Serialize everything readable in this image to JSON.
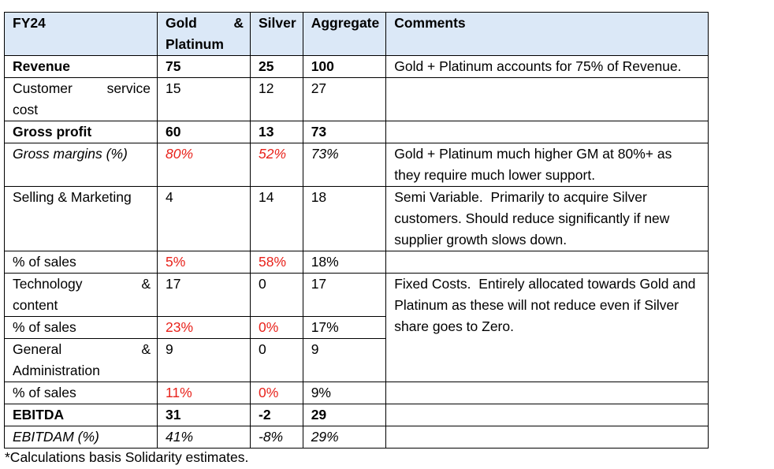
{
  "table": {
    "headers": {
      "label": "FY24",
      "gold_line1_left": "Gold",
      "gold_line1_right": "&",
      "gold_line2": "Platinum",
      "silver": "Silver",
      "aggregate": "Aggregate",
      "comments": "Comments"
    },
    "rows": {
      "revenue": {
        "label": "Revenue",
        "gold": "75",
        "silver": "25",
        "aggregate": "100",
        "comment": "Gold + Platinum accounts for 75% of Revenue."
      },
      "customer_service_cost": {
        "label_left": "Customer",
        "label_right": "service",
        "label_line2": "cost",
        "gold": "15",
        "silver": "12",
        "aggregate": "27",
        "comment": ""
      },
      "gross_profit": {
        "label": "Gross profit",
        "gold": "60",
        "silver": "13",
        "aggregate": "73",
        "comment": ""
      },
      "gross_margins": {
        "label": "Gross margins (%)",
        "gold": "80%",
        "silver": "52%",
        "aggregate": "73%",
        "comment": "Gold + Platinum much higher GM at 80%+ as they require much lower support."
      },
      "selling_marketing": {
        "label": "Selling & Marketing",
        "gold": "4",
        "silver": "14",
        "aggregate": "18",
        "comment": "Semi Variable.  Primarily to acquire Silver customers. Should reduce significantly if new supplier growth slows down."
      },
      "sm_pct_sales": {
        "label": "% of sales",
        "gold": "5%",
        "silver": "58%",
        "aggregate": "18%",
        "comment": ""
      },
      "technology_content": {
        "label_left": "Technology",
        "label_right": "&",
        "label_line2": "content",
        "gold": "17",
        "silver": "0",
        "aggregate": "17",
        "comment": "Fixed Costs.  Entirely allocated towards Gold and Platinum as these will not reduce even if Silver share goes to Zero."
      },
      "tech_pct_sales": {
        "label": "% of sales",
        "gold": "23%",
        "silver": "0%",
        "aggregate": "17%"
      },
      "general_administration": {
        "label_left": "General",
        "label_right": "&",
        "label_line2": "Administration",
        "gold": "9",
        "silver": "0",
        "aggregate": "9"
      },
      "ga_pct_sales": {
        "label": "% of sales",
        "gold": "11%",
        "silver": "0%",
        "aggregate": "9%",
        "comment": ""
      },
      "ebitda": {
        "label": "EBITDA",
        "gold": "31",
        "silver": "-2",
        "aggregate": "29",
        "comment": ""
      },
      "ebitdam": {
        "label": "EBITDAM (%)",
        "gold": "41%",
        "silver": "-8%",
        "aggregate": "29%",
        "comment": ""
      }
    },
    "colors": {
      "header_background": "#dbe8f7",
      "highlight_red": "#e8221b",
      "border": "#000000"
    }
  },
  "footnote": "*Calculations basis Solidarity estimates."
}
